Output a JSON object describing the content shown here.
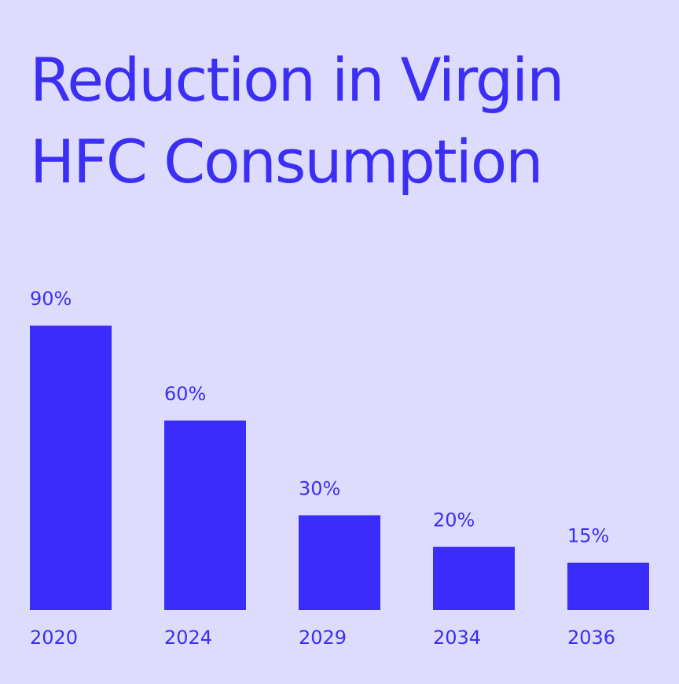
{
  "chart_data": {
    "type": "bar",
    "title": "Reduction in Virgin HFC Consumption",
    "categories": [
      "2020",
      "2024",
      "2029",
      "2034",
      "2036"
    ],
    "values": [
      90,
      60,
      30,
      20,
      15
    ],
    "value_labels": [
      "90%",
      "60%",
      "30%",
      "20%",
      "15%"
    ],
    "color": "#3a2dfc"
  }
}
